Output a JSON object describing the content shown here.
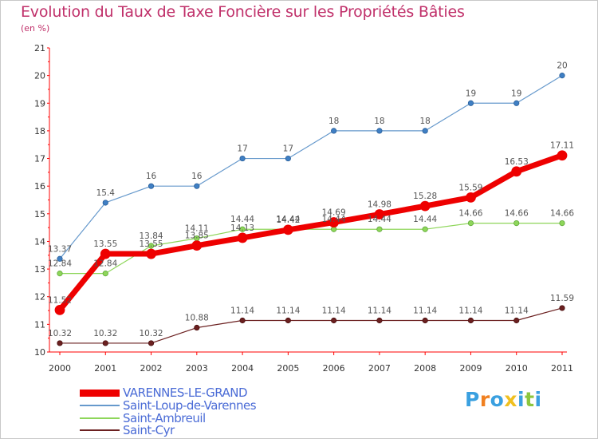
{
  "chart_data": {
    "type": "line",
    "title": "Evolution du Taux de Taxe Foncière sur les Propriétés Bâties",
    "subtitle": "(en %)",
    "xlabel": "",
    "ylabel": "(en %)",
    "ylim": [
      10,
      21
    ],
    "yticks": [
      10,
      11,
      12,
      13,
      14,
      15,
      16,
      17,
      18,
      19,
      20,
      21
    ],
    "x": [
      2000,
      2001,
      2002,
      2003,
      2004,
      2005,
      2006,
      2007,
      2008,
      2009,
      2010,
      2011
    ],
    "x_labels": [
      "2000",
      "2001",
      "2002",
      "2003",
      "2004",
      "2005",
      "2006",
      "2007",
      "2008",
      "2009",
      "2010",
      "2011"
    ],
    "grid": false,
    "legend_position": "bottom-left",
    "series": [
      {
        "name": "Saint-Cyr",
        "color": "#6b2020",
        "values": [
          10.32,
          10.32,
          10.32,
          10.88,
          11.14,
          11.14,
          11.14,
          11.14,
          11.14,
          11.14,
          11.14,
          11.59
        ],
        "labels": [
          "10.32",
          "10.32",
          "10.32",
          "10.88",
          "11.14",
          "11.14",
          "11.14",
          "11.14",
          "11.14",
          "11.14",
          "11.14",
          "11.59"
        ]
      },
      {
        "name": "Saint-Ambreuil",
        "color": "#8ed65a",
        "values": [
          12.84,
          12.84,
          13.84,
          14.11,
          14.44,
          14.44,
          14.44,
          14.44,
          14.44,
          14.66,
          14.66,
          14.66
        ],
        "labels": [
          "12.84",
          "12.84",
          "13.84",
          "14.11",
          "14.44",
          "14.44",
          "14.44",
          "14.44",
          "14.44",
          "14.66",
          "14.66",
          "14.66"
        ]
      },
      {
        "name": "Saint-Loup-de-Varennes",
        "color": "#6699cc",
        "values": [
          13.37,
          15.4,
          16,
          16,
          17,
          17,
          18,
          18,
          18,
          19,
          19,
          20
        ],
        "labels": [
          "13.37",
          "15.4",
          "16",
          "16",
          "17",
          "17",
          "18",
          "18",
          "18",
          "19",
          "19",
          "20"
        ]
      },
      {
        "name": "VARENNES-LE-GRAND",
        "color": "#ee0000",
        "values": [
          11.52,
          13.55,
          13.55,
          13.85,
          14.13,
          14.42,
          14.69,
          14.98,
          15.28,
          15.59,
          16.53,
          17.11
        ],
        "labels": [
          "11.52",
          "13.55",
          "13.55",
          "13.85",
          "14.13",
          "14.42",
          "14.69",
          "14.98",
          "15.28",
          "15.59",
          "16.53",
          "17.11"
        ]
      }
    ]
  },
  "legend": {
    "items": [
      {
        "label": "VARENNES-LE-GRAND",
        "color": "#ee0000",
        "text_color": "#4a6bd6"
      },
      {
        "label": "Saint-Loup-de-Varennes",
        "color": "#6699cc",
        "text_color": "#4a6bd6"
      },
      {
        "label": "Saint-Ambreuil",
        "color": "#8ed65a",
        "text_color": "#4a6bd6"
      },
      {
        "label": "Saint-Cyr",
        "color": "#6b2020",
        "text_color": "#4a6bd6"
      }
    ]
  },
  "logo": {
    "text": "Proxiti",
    "letters": [
      "P",
      "r",
      "o",
      "x",
      "i",
      "t",
      "i"
    ],
    "colors": [
      "#3aa0e0",
      "#f08020",
      "#3aa0e0",
      "#f0c020",
      "#3aa0e0",
      "#8cc63f",
      "#3aa0e0"
    ]
  }
}
